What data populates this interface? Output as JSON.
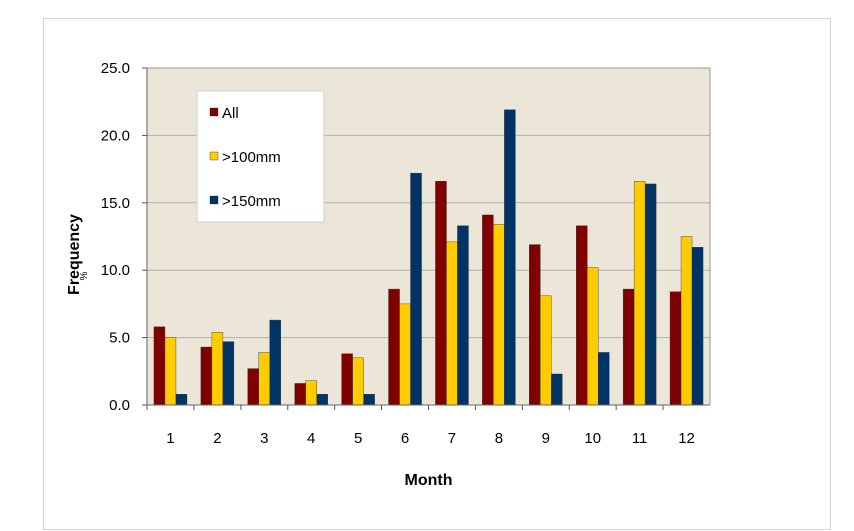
{
  "chart_data": {
    "type": "bar",
    "title": "",
    "xlabel": "Month",
    "ylabel": "Frequency",
    "ylabel_prefix": "%",
    "ylim": [
      0,
      25
    ],
    "yticks": [
      "0.0",
      "5.0",
      "10.0",
      "15.0",
      "20.0",
      "25.0"
    ],
    "categories": [
      "1",
      "2",
      "3",
      "4",
      "5",
      "6",
      "7",
      "8",
      "9",
      "10",
      "11",
      "12"
    ],
    "grid": "horizontal",
    "legend_position": "top-left",
    "plot_background": "#ebe6d8",
    "series": [
      {
        "name": "All",
        "color": "#800000",
        "values": [
          5.8,
          4.3,
          2.7,
          1.6,
          3.8,
          8.6,
          16.6,
          14.1,
          11.9,
          13.3,
          8.6,
          8.4
        ]
      },
      {
        "name": ">100mm",
        "color": "#ffcc00",
        "values": [
          5.0,
          5.4,
          3.9,
          1.8,
          3.5,
          7.5,
          12.1,
          13.4,
          8.1,
          10.2,
          16.6,
          12.5
        ]
      },
      {
        "name": ">150mm",
        "color": "#003366",
        "values": [
          0.8,
          4.7,
          6.3,
          0.8,
          0.8,
          17.2,
          13.3,
          21.9,
          2.3,
          3.9,
          16.4,
          11.7
        ]
      }
    ]
  }
}
